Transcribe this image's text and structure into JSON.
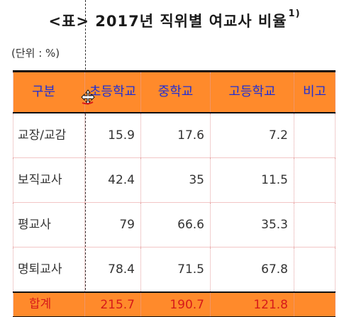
{
  "title": {
    "text": "<표> 2017년 직위별 여교사 비율",
    "superscript": "1)"
  },
  "unit_label": "(단위 : %)",
  "table": {
    "headers": [
      "구분",
      "초등학교",
      "중학교",
      "고등학교",
      "비고"
    ],
    "rows": [
      {
        "label": "교장/교감",
        "elementary": "15.9",
        "middle": "17.6",
        "high": "7.2",
        "note": ""
      },
      {
        "label": "보직교사",
        "elementary": "42.4",
        "middle": "35",
        "high": "11.5",
        "note": ""
      },
      {
        "label": "평교사",
        "elementary": "79",
        "middle": "66.6",
        "high": "35.3",
        "note": ""
      },
      {
        "label": "명퇴교사",
        "elementary": "78.4",
        "middle": "71.5",
        "high": "67.8",
        "note": ""
      }
    ],
    "total": {
      "label": "합계",
      "elementary": "215.7",
      "middle": "190.7",
      "high": "121.8",
      "note": ""
    }
  },
  "colors": {
    "header_fill": "#ff8a2b",
    "header_text": "#1f2fd6",
    "total_text": "#d61a1a",
    "row_border": "#f2c5c5"
  }
}
